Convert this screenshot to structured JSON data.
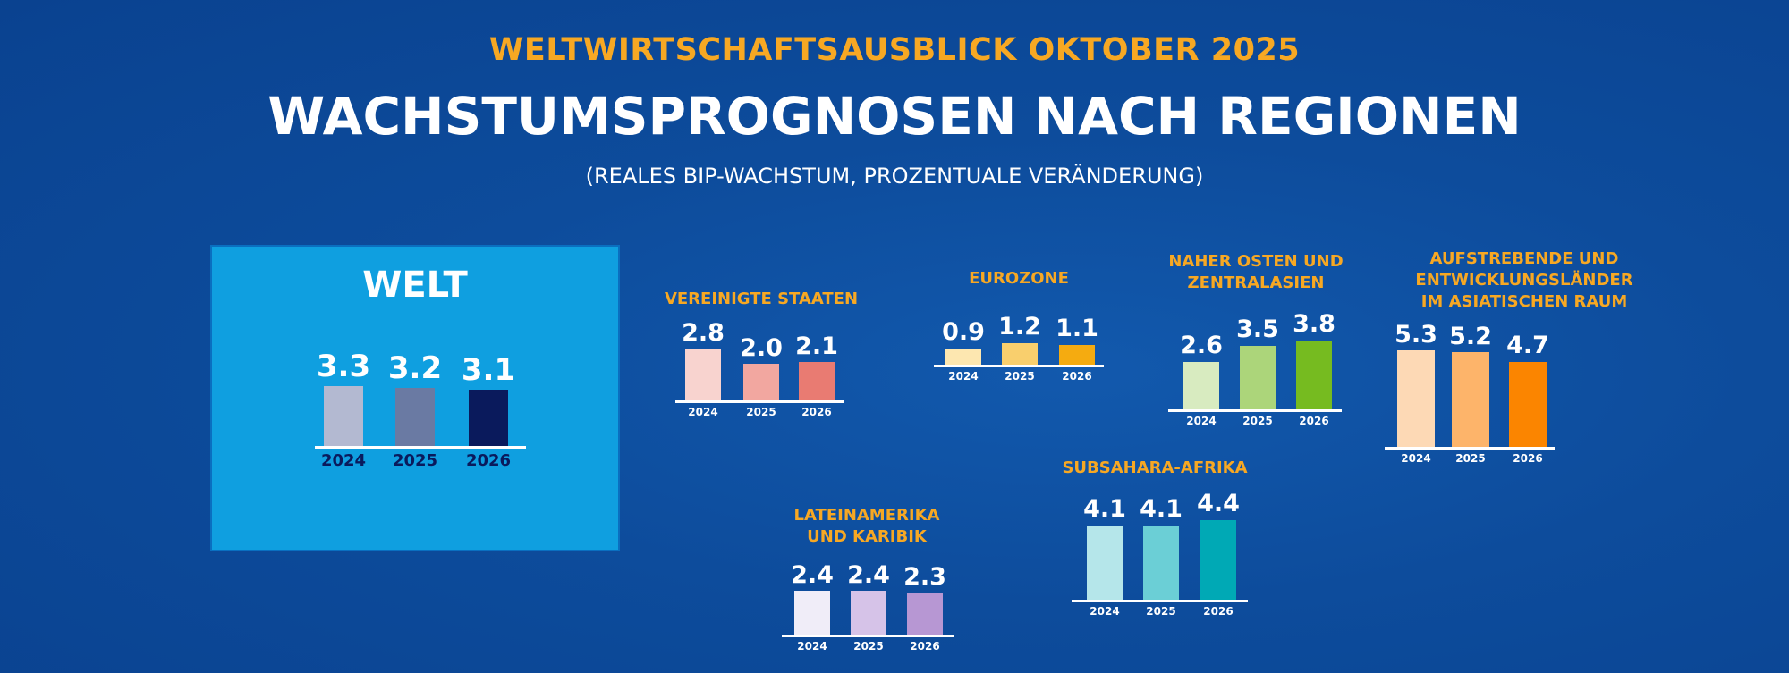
{
  "header": {
    "kicker": "WELTWIRTSCHAFTSAUSBLICK OKTOBER 2025",
    "title": "WACHSTUMSPROGNOSEN NACH REGIONEN",
    "subtitle": "(REALES BIP-WACHSTUM, PROZENTUALE VERÄNDERUNG)"
  },
  "chart_data": {
    "type": "bar",
    "title": "WACHSTUMSPROGNOSEN NACH REGIONEN",
    "ylabel": "Reales BIP-Wachstum (%)",
    "categories": [
      "2024",
      "2025",
      "2026"
    ],
    "series": [
      {
        "name": "WELT",
        "title_lines": [
          "WELT"
        ],
        "values": [
          3.3,
          3.2,
          3.1
        ],
        "labels": [
          "3.3",
          "3.2",
          "3.1"
        ],
        "colors": [
          "#b3b9d1",
          "#6a7aa3",
          "#0a1a5c"
        ]
      },
      {
        "name": "VEREINIGTE STAATEN",
        "title_lines": [
          "VEREINIGTE STAATEN"
        ],
        "values": [
          2.8,
          2.0,
          2.1
        ],
        "labels": [
          "2.8",
          "2.0",
          "2.1"
        ],
        "colors": [
          "#f8d3cf",
          "#f2a7a0",
          "#e97b72"
        ]
      },
      {
        "name": "EUROZONE",
        "title_lines": [
          "EUROZONE"
        ],
        "values": [
          0.9,
          1.2,
          1.1
        ],
        "labels": [
          "0.9",
          "1.2",
          "1.1"
        ],
        "colors": [
          "#fde7b0",
          "#f9cf6d",
          "#f5ab10"
        ]
      },
      {
        "name": "NAHER OSTEN UND ZENTRALASIEN",
        "title_lines": [
          "NAHER OSTEN UND",
          "ZENTRALASIEN"
        ],
        "values": [
          2.6,
          3.5,
          3.8
        ],
        "labels": [
          "2.6",
          "3.5",
          "3.8"
        ],
        "colors": [
          "#d8ebc0",
          "#acd57a",
          "#76bb20"
        ]
      },
      {
        "name": "AUFSTREBENDE UND ENTWICKLUNGSLÄNDER IM ASIATISCHEN RAUM",
        "title_lines": [
          "AUFSTREBENDE UND",
          "ENTWICKLUNGSLÄNDER",
          "IM ASIATISCHEN RAUM"
        ],
        "values": [
          5.3,
          5.2,
          4.7
        ],
        "labels": [
          "5.3",
          "5.2",
          "4.7"
        ],
        "colors": [
          "#fdd9b5",
          "#fdb46a",
          "#fb8500"
        ]
      },
      {
        "name": "SUBSAHARA-AFRIKA",
        "title_lines": [
          "SUBSAHARA-AFRIKA"
        ],
        "values": [
          4.1,
          4.1,
          4.4
        ],
        "labels": [
          "4.1",
          "4.1",
          "4.4"
        ],
        "colors": [
          "#b5e6ea",
          "#6bcfd6",
          "#00a9b5"
        ]
      },
      {
        "name": "LATEINAMERIKA UND KARIBIK",
        "title_lines": [
          "LATEINAMERIKA",
          "UND KARIBIK"
        ],
        "values": [
          2.4,
          2.4,
          2.3
        ],
        "labels": [
          "2.4",
          "2.4",
          "2.3"
        ],
        "colors": [
          "#f0edf8",
          "#d6c3e8",
          "#b797d3"
        ]
      }
    ]
  }
}
